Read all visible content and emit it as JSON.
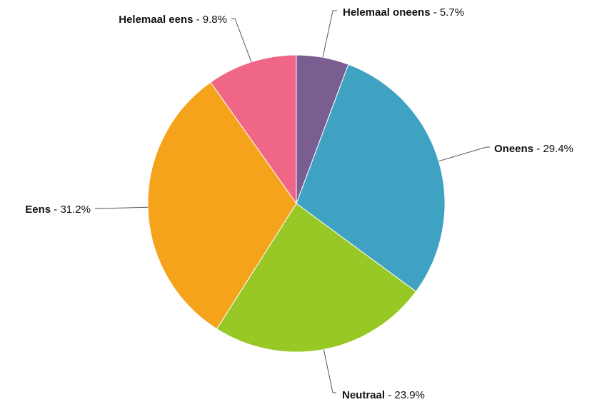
{
  "chart_data": {
    "type": "pie",
    "title": "",
    "slices": [
      {
        "label": "Helemaal oneens",
        "value": 5.7,
        "display": "5.7%",
        "color": "#7b5e91"
      },
      {
        "label": "Oneens",
        "value": 29.4,
        "display": "29.4%",
        "color": "#40a2c3"
      },
      {
        "label": "Neutraal",
        "value": 23.9,
        "display": "23.9%",
        "color": "#97c826"
      },
      {
        "label": "Eens",
        "value": 31.2,
        "display": "31.2%",
        "color": "#f4a31a"
      },
      {
        "label": "Helemaal eens",
        "value": 9.8,
        "display": "9.8%",
        "color": "#ef6687"
      }
    ],
    "start_angle": "12 o'clock",
    "direction": "clockwise",
    "legend": "none",
    "label_separator": " - "
  }
}
